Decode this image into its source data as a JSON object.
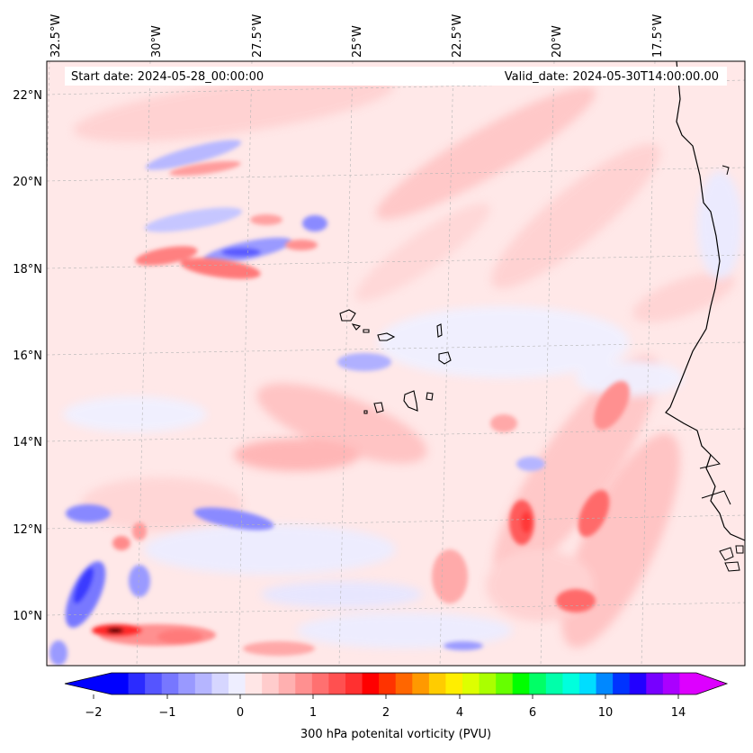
{
  "header": {
    "start_label": "Start date: 2024-05-28_00:00:00",
    "valid_label": "Valid_date: 2024-05-30T14:00:00.00"
  },
  "map": {
    "lon_labels": [
      "32.5°W",
      "30°W",
      "27.5°W",
      "25°W",
      "22.5°W",
      "20°W",
      "17.5°W"
    ],
    "lat_labels": [
      "22°N",
      "20°N",
      "18°N",
      "16°N",
      "14°N",
      "12°N",
      "10°N"
    ],
    "variable": "300 hPa potential vorticity",
    "gridlines": "dashed",
    "features": [
      "Cape Verde islands",
      "West African coastline"
    ]
  },
  "colorbar": {
    "title": "300 hPa potenital vorticity (PVU)",
    "ticks": [
      "−2",
      "−1",
      "0",
      "1",
      "2",
      "4",
      "6",
      "10",
      "14"
    ],
    "extend": "both",
    "colors": [
      "#0000ff",
      "#2b2bff",
      "#5555ff",
      "#7777ff",
      "#9999ff",
      "#b5b5ff",
      "#d6d6ff",
      "#eeeeff",
      "#ffe6e6",
      "#ffcccc",
      "#ffb0b0",
      "#ff9090",
      "#ff7070",
      "#ff5050",
      "#ff3030",
      "#ff0000",
      "#ff3300",
      "#ff6600",
      "#ff9900",
      "#ffcc00",
      "#ffee00",
      "#ddff00",
      "#aaff00",
      "#66ff00",
      "#00ff00",
      "#00ff66",
      "#00ffaa",
      "#00ffdd",
      "#00ddff",
      "#0088ff",
      "#0033ff",
      "#2200ff",
      "#7700ff",
      "#aa00ff",
      "#dd00ff"
    ],
    "under_color": "#0000ff",
    "over_color": "#dd00ff"
  }
}
